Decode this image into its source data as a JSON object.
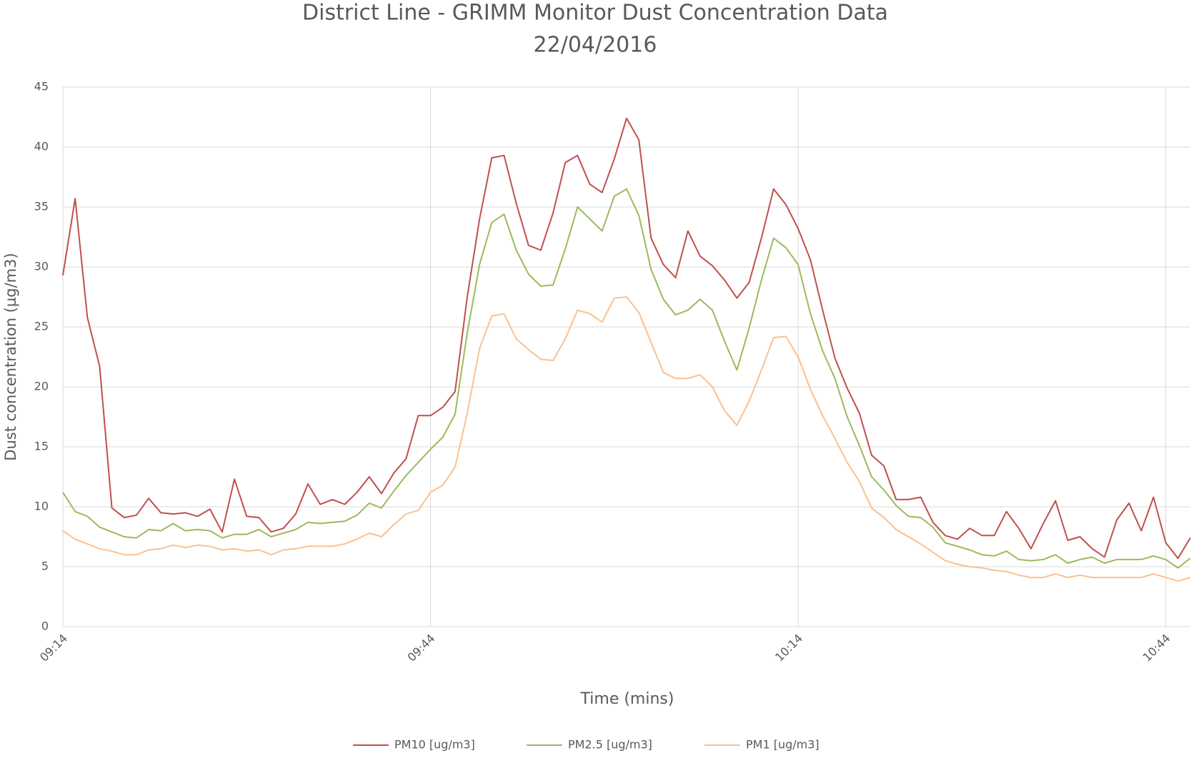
{
  "chart_data": {
    "type": "line",
    "title": "District Line - GRIMM Monitor Dust Concentration Data",
    "subtitle": "22/04/2016",
    "x_label": "Time (mins)",
    "y_label": "Dust concentration  (µg/m3)",
    "categories": [
      "09:14",
      null,
      null,
      null,
      null,
      null,
      null,
      null,
      null,
      null,
      null,
      null,
      null,
      null,
      null,
      null,
      null,
      null,
      null,
      null,
      null,
      null,
      null,
      null,
      null,
      null,
      null,
      null,
      null,
      null,
      "09:44",
      null,
      null,
      null,
      null,
      null,
      null,
      null,
      null,
      null,
      null,
      null,
      null,
      null,
      null,
      null,
      null,
      null,
      null,
      null,
      null,
      null,
      null,
      null,
      null,
      null,
      null,
      null,
      null,
      null,
      "10:14",
      null,
      null,
      null,
      null,
      null,
      null,
      null,
      null,
      null,
      null,
      null,
      null,
      null,
      null,
      null,
      null,
      null,
      null,
      null,
      null,
      null,
      null,
      null,
      null,
      null,
      null,
      null,
      null,
      null,
      "10:44",
      null,
      null
    ],
    "ylim": [
      0,
      45
    ],
    "yticks": [
      0,
      5,
      10,
      15,
      20,
      25,
      30,
      35,
      40,
      45
    ],
    "grid": true,
    "legend": "bottom",
    "series": [
      {
        "name": "PM10 [ug/m3]",
        "color": "#c0504d",
        "values": [
          29.3,
          35.7,
          25.8,
          21.7,
          9.9,
          9.1,
          9.3,
          10.7,
          9.5,
          9.4,
          9.5,
          9.2,
          9.8,
          7.9,
          12.3,
          9.2,
          9.1,
          7.9,
          8.2,
          9.4,
          11.9,
          10.2,
          10.6,
          10.2,
          11.2,
          12.5,
          11.1,
          12.8,
          14.0,
          17.6,
          17.6,
          18.3,
          19.6,
          27.5,
          34.0,
          39.1,
          39.3,
          35.3,
          31.8,
          31.4,
          34.5,
          38.7,
          39.3,
          36.9,
          36.2,
          39.0,
          42.4,
          40.6,
          32.4,
          30.2,
          29.1,
          33.0,
          30.9,
          30.1,
          28.9,
          27.4,
          28.7,
          32.4,
          36.5,
          35.2,
          33.2,
          30.6,
          26.4,
          22.4,
          19.9,
          17.8,
          14.3,
          13.4,
          10.6,
          10.6,
          10.8,
          8.7,
          7.6,
          7.3,
          8.2,
          7.6,
          7.6,
          9.6,
          8.2,
          6.5,
          8.6,
          10.5,
          7.2,
          7.5,
          6.5,
          5.8,
          8.9,
          10.3,
          8.0,
          10.8,
          7.0,
          5.7,
          7.4
        ]
      },
      {
        "name": "PM2.5 [ug/m3]",
        "color": "#9bbb59",
        "values": [
          11.2,
          9.6,
          9.2,
          8.3,
          7.9,
          7.5,
          7.4,
          8.1,
          8.0,
          8.6,
          8.0,
          8.1,
          8.0,
          7.4,
          7.7,
          7.7,
          8.1,
          7.5,
          7.8,
          8.1,
          8.7,
          8.6,
          8.7,
          8.8,
          9.3,
          10.3,
          9.9,
          11.3,
          12.6,
          13.7,
          14.8,
          15.8,
          17.7,
          24.5,
          30.2,
          33.7,
          34.4,
          31.4,
          29.4,
          28.4,
          28.5,
          31.5,
          35.0,
          34.0,
          33.0,
          35.9,
          36.5,
          34.3,
          29.8,
          27.3,
          26.0,
          26.4,
          27.3,
          26.4,
          23.8,
          21.4,
          24.9,
          28.9,
          32.4,
          31.6,
          30.2,
          26.1,
          23.0,
          20.7,
          17.5,
          15.1,
          12.5,
          11.4,
          10.1,
          9.2,
          9.1,
          8.3,
          7.0,
          6.7,
          6.4,
          6.0,
          5.9,
          6.3,
          5.6,
          5.5,
          5.6,
          6.0,
          5.3,
          5.6,
          5.8,
          5.3,
          5.6,
          5.6,
          5.6,
          5.9,
          5.6,
          4.9,
          5.7
        ]
      },
      {
        "name": "PM1 [ug/m3]",
        "color": "#fac090",
        "values": [
          8.0,
          7.3,
          6.9,
          6.5,
          6.3,
          6.0,
          6.0,
          6.4,
          6.5,
          6.8,
          6.6,
          6.8,
          6.7,
          6.4,
          6.5,
          6.3,
          6.4,
          6.0,
          6.4,
          6.5,
          6.7,
          6.7,
          6.7,
          6.9,
          7.3,
          7.8,
          7.5,
          8.5,
          9.4,
          9.7,
          11.2,
          11.8,
          13.3,
          17.8,
          23.2,
          25.9,
          26.1,
          24.0,
          23.1,
          22.3,
          22.2,
          24.0,
          26.4,
          26.1,
          25.4,
          27.4,
          27.5,
          26.2,
          23.7,
          21.2,
          20.7,
          20.7,
          21.0,
          20.0,
          18.0,
          16.8,
          18.8,
          21.4,
          24.1,
          24.2,
          22.5,
          19.8,
          17.6,
          15.7,
          13.7,
          12.1,
          9.9,
          9.1,
          8.1,
          7.5,
          6.9,
          6.2,
          5.5,
          5.2,
          5.0,
          4.9,
          4.7,
          4.6,
          4.3,
          4.1,
          4.1,
          4.4,
          4.1,
          4.3,
          4.1,
          4.1,
          4.1,
          4.1,
          4.1,
          4.4,
          4.1,
          3.8,
          4.1
        ]
      }
    ]
  }
}
